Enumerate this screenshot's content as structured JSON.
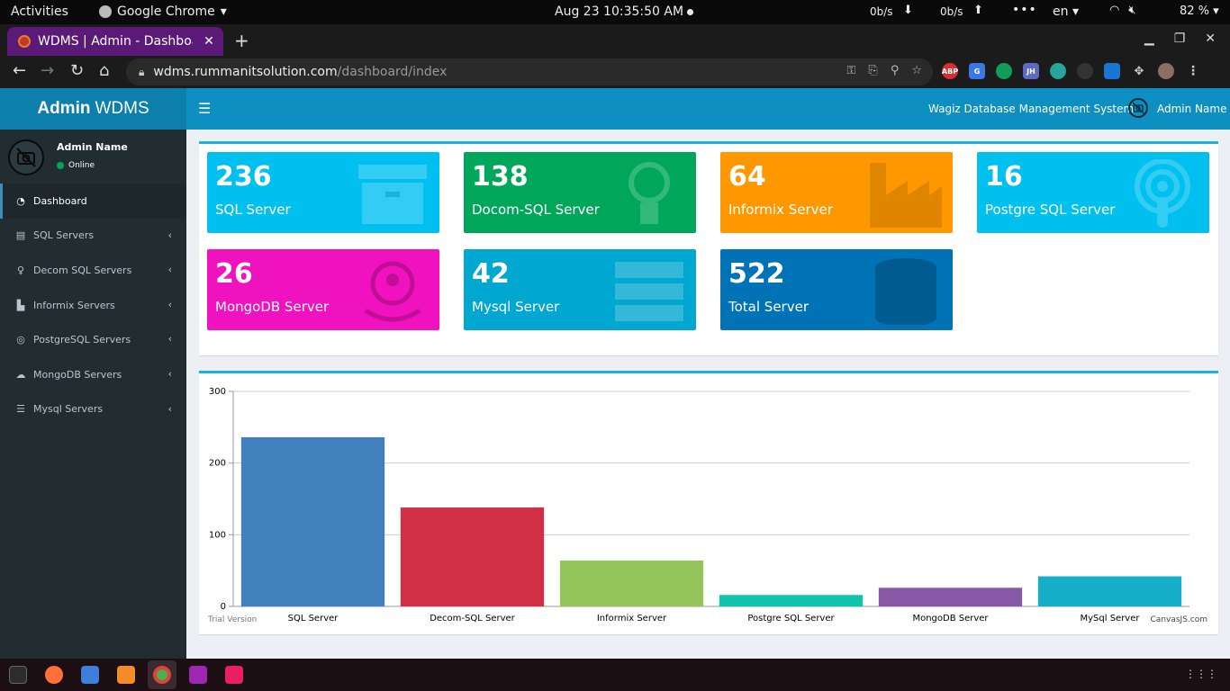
{
  "os_bar": {
    "activities": "Activities",
    "app_name": "Google Chrome",
    "clock": "Aug 23  10:35:50 AM",
    "net_down": "0b/s",
    "net_up": "0b/s",
    "language": "en",
    "battery": "82 %"
  },
  "browser": {
    "tab_title": "WDMS | Admin - Dashboard",
    "url_host": "wdms.rummanitsolution.com",
    "url_path": "/dashboard/index",
    "extensions": [
      "ABP",
      "G",
      "",
      "JH",
      "",
      "",
      "",
      ""
    ]
  },
  "header": {
    "brand_bold": "Admin",
    "brand_rest": "WDMS",
    "system_name": "Wagiz Database Management System",
    "user_name": "Admin Name"
  },
  "sidebar": {
    "user_name": "Admin Name",
    "status": "Online",
    "items": [
      {
        "label": "Dashboard",
        "icon": "dashboard-icon",
        "glyph": "◔",
        "active": true,
        "has_chevron": false
      },
      {
        "label": "SQL Servers",
        "icon": "archive-icon",
        "glyph": "▤",
        "active": false,
        "has_chevron": true
      },
      {
        "label": "Decom SQL Servers",
        "icon": "lightbulb-icon",
        "glyph": "♀",
        "active": false,
        "has_chevron": true
      },
      {
        "label": "Informix Servers",
        "icon": "industry-icon",
        "glyph": "▙",
        "active": false,
        "has_chevron": true
      },
      {
        "label": "PostgreSQL Servers",
        "icon": "podcast-icon",
        "glyph": "◎",
        "active": false,
        "has_chevron": true
      },
      {
        "label": "MongoDB Servers",
        "icon": "octopus-icon",
        "glyph": "☁",
        "active": false,
        "has_chevron": true
      },
      {
        "label": "Mysql Servers",
        "icon": "server-icon",
        "glyph": "☰",
        "active": false,
        "has_chevron": true
      }
    ]
  },
  "tiles": [
    {
      "value": "236",
      "label": "SQL Server",
      "color": "#00c0ef",
      "icon": "archive-icon"
    },
    {
      "value": "138",
      "label": "Docom-SQL Server",
      "color": "#00a65a",
      "icon": "lightbulb-icon"
    },
    {
      "value": "64",
      "label": "Informix Server",
      "color": "#ff9800",
      "icon": "industry-icon"
    },
    {
      "value": "16",
      "label": "Postgre SQL Server",
      "color": "#00c0ef",
      "icon": "podcast-icon"
    },
    {
      "value": "26",
      "label": "MongoDB Server",
      "color": "#f012be",
      "icon": "octopus-icon"
    },
    {
      "value": "42",
      "label": "Mysql Server",
      "color": "#00a7d0",
      "icon": "server-icon"
    },
    {
      "value": "522",
      "label": "Total Server",
      "color": "#0073b7",
      "icon": "database-icon"
    }
  ],
  "chart_data": {
    "type": "bar",
    "categories": [
      "SQL Server",
      "Decom-SQL Server",
      "Informix Server",
      "Postgre SQL Server",
      "MongoDB Server",
      "MySql Server"
    ],
    "values": [
      236,
      138,
      64,
      16,
      26,
      42
    ],
    "colors": [
      "#4180bd",
      "#cf3046",
      "#93c55a",
      "#11c4ae",
      "#8658a5",
      "#16aec9"
    ],
    "ylim": [
      0,
      300
    ],
    "yticks": [
      0,
      100,
      200,
      300
    ],
    "grid": true,
    "title": "",
    "xlabel": "",
    "ylabel": "",
    "footer_left": "Trial Version",
    "footer_right": "CanvasJS.com"
  }
}
